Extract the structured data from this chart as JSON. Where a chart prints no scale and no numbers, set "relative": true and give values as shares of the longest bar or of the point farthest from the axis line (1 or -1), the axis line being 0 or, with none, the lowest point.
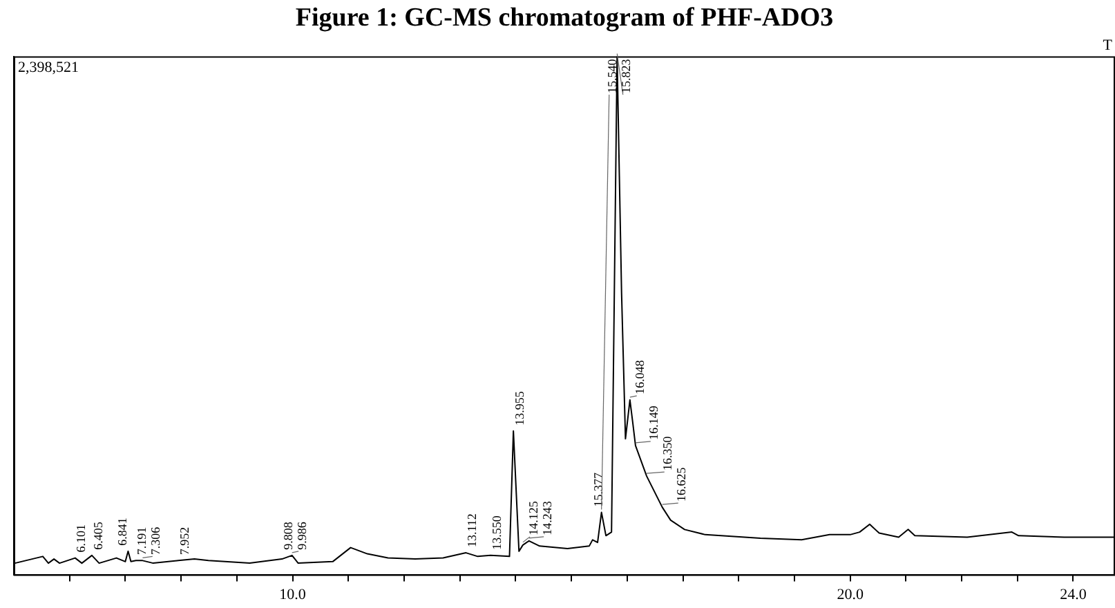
{
  "chart_data": {
    "type": "line",
    "title": "Figure 1: GC-MS chromatogram of PHF-ADO3",
    "relative": true,
    "color": "#000000",
    "marker": "none",
    "grid": false,
    "legend": false,
    "x": [
      5.02,
      5.52,
      5.62,
      5.72,
      5.82,
      6.1,
      6.22,
      6.4,
      6.53,
      6.84,
      7.0,
      7.05,
      7.1,
      7.19,
      7.31,
      7.5,
      7.95,
      8.24,
      8.49,
      9.23,
      9.81,
      9.99,
      10.1,
      10.72,
      11.04,
      11.34,
      11.71,
      12.2,
      12.7,
      13.11,
      13.32,
      13.55,
      13.89,
      13.96,
      14.06,
      14.13,
      14.24,
      14.43,
      14.93,
      15.32,
      15.38,
      15.47,
      15.54,
      15.62,
      15.72,
      15.82,
      15.9,
      15.97,
      16.05,
      16.1,
      16.15,
      16.35,
      16.63,
      16.78,
      17.03,
      17.4,
      18.39,
      19.13,
      19.63,
      20.0,
      20.17,
      20.35,
      20.52,
      20.87,
      21.04,
      21.16,
      22.1,
      22.9,
      23.02,
      23.84,
      24.75
    ],
    "values": [
      0.022,
      0.035,
      0.022,
      0.03,
      0.022,
      0.032,
      0.022,
      0.037,
      0.022,
      0.032,
      0.025,
      0.045,
      0.025,
      0.027,
      0.027,
      0.022,
      0.027,
      0.03,
      0.027,
      0.022,
      0.03,
      0.037,
      0.022,
      0.025,
      0.052,
      0.04,
      0.032,
      0.03,
      0.032,
      0.042,
      0.035,
      0.037,
      0.035,
      0.277,
      0.045,
      0.057,
      0.065,
      0.055,
      0.05,
      0.055,
      0.067,
      0.062,
      0.12,
      0.075,
      0.082,
      1,
      0.544,
      0.262,
      0.337,
      0.294,
      0.249,
      0.19,
      0.13,
      0.105,
      0.087,
      0.077,
      0.07,
      0.067,
      0.077,
      0.077,
      0.082,
      0.097,
      0.08,
      0.072,
      0.087,
      0.075,
      0.072,
      0.082,
      0.075,
      0.072,
      0.072
    ],
    "xlim": [
      5.0,
      24.75
    ],
    "xticks": [
      {
        "value": 6,
        "label": null
      },
      {
        "value": 7,
        "label": null
      },
      {
        "value": 8,
        "label": null
      },
      {
        "value": 9,
        "label": null
      },
      {
        "value": 10,
        "label": "10.0"
      },
      {
        "value": 11,
        "label": null
      },
      {
        "value": 12,
        "label": null
      },
      {
        "value": 13,
        "label": null
      },
      {
        "value": 14,
        "label": null
      },
      {
        "value": 15,
        "label": null
      },
      {
        "value": 16,
        "label": null
      },
      {
        "value": 17,
        "label": null
      },
      {
        "value": 18,
        "label": null
      },
      {
        "value": 19,
        "label": null
      },
      {
        "value": 20,
        "label": "20.0"
      },
      {
        "value": 21,
        "label": null
      },
      {
        "value": 22,
        "label": null
      },
      {
        "value": 23,
        "label": null
      },
      {
        "value": 24,
        "label": "24.0"
      }
    ],
    "annotations": [
      "2,398,521",
      "T",
      {
        "text": "6.101",
        "x": 6.1,
        "y": 0.032
      },
      {
        "text": "6.405",
        "x": 6.4,
        "y": 0.037
      },
      {
        "text": "6.841",
        "x": 6.84,
        "y": 0.032
      },
      {
        "text": "7.191",
        "x": 7.19,
        "y": 0.027
      },
      {
        "text": "7.306",
        "x": 7.31,
        "y": 0.027
      },
      {
        "text": "7.952",
        "x": 7.95,
        "y": 0.027
      },
      {
        "text": "9.808",
        "x": 9.81,
        "y": 0.03
      },
      {
        "text": "9.986",
        "x": 9.99,
        "y": 0.037
      },
      {
        "text": "13.112",
        "x": 13.11,
        "y": 0.042
      },
      {
        "text": "13.550",
        "x": 13.55,
        "y": 0.037
      },
      {
        "text": "13.955",
        "x": 13.96,
        "y": 0.277
      },
      {
        "text": "14.125",
        "x": 14.13,
        "y": 0.057
      },
      {
        "text": "14.243",
        "x": 14.24,
        "y": 0.065
      },
      {
        "text": "15.377",
        "x": 15.38,
        "y": 0.067
      },
      {
        "text": "15.540",
        "x": 15.54,
        "y": 0.12
      },
      {
        "text": "15.823",
        "x": 15.82,
        "y": 1
      },
      {
        "text": "16.048",
        "x": 16.05,
        "y": 0.337
      },
      {
        "text": "16.149",
        "x": 16.15,
        "y": 0.249
      },
      {
        "text": "16.350",
        "x": 16.35,
        "y": 0.19
      },
      {
        "text": "16.625",
        "x": 16.63,
        "y": 0.13
      }
    ]
  }
}
